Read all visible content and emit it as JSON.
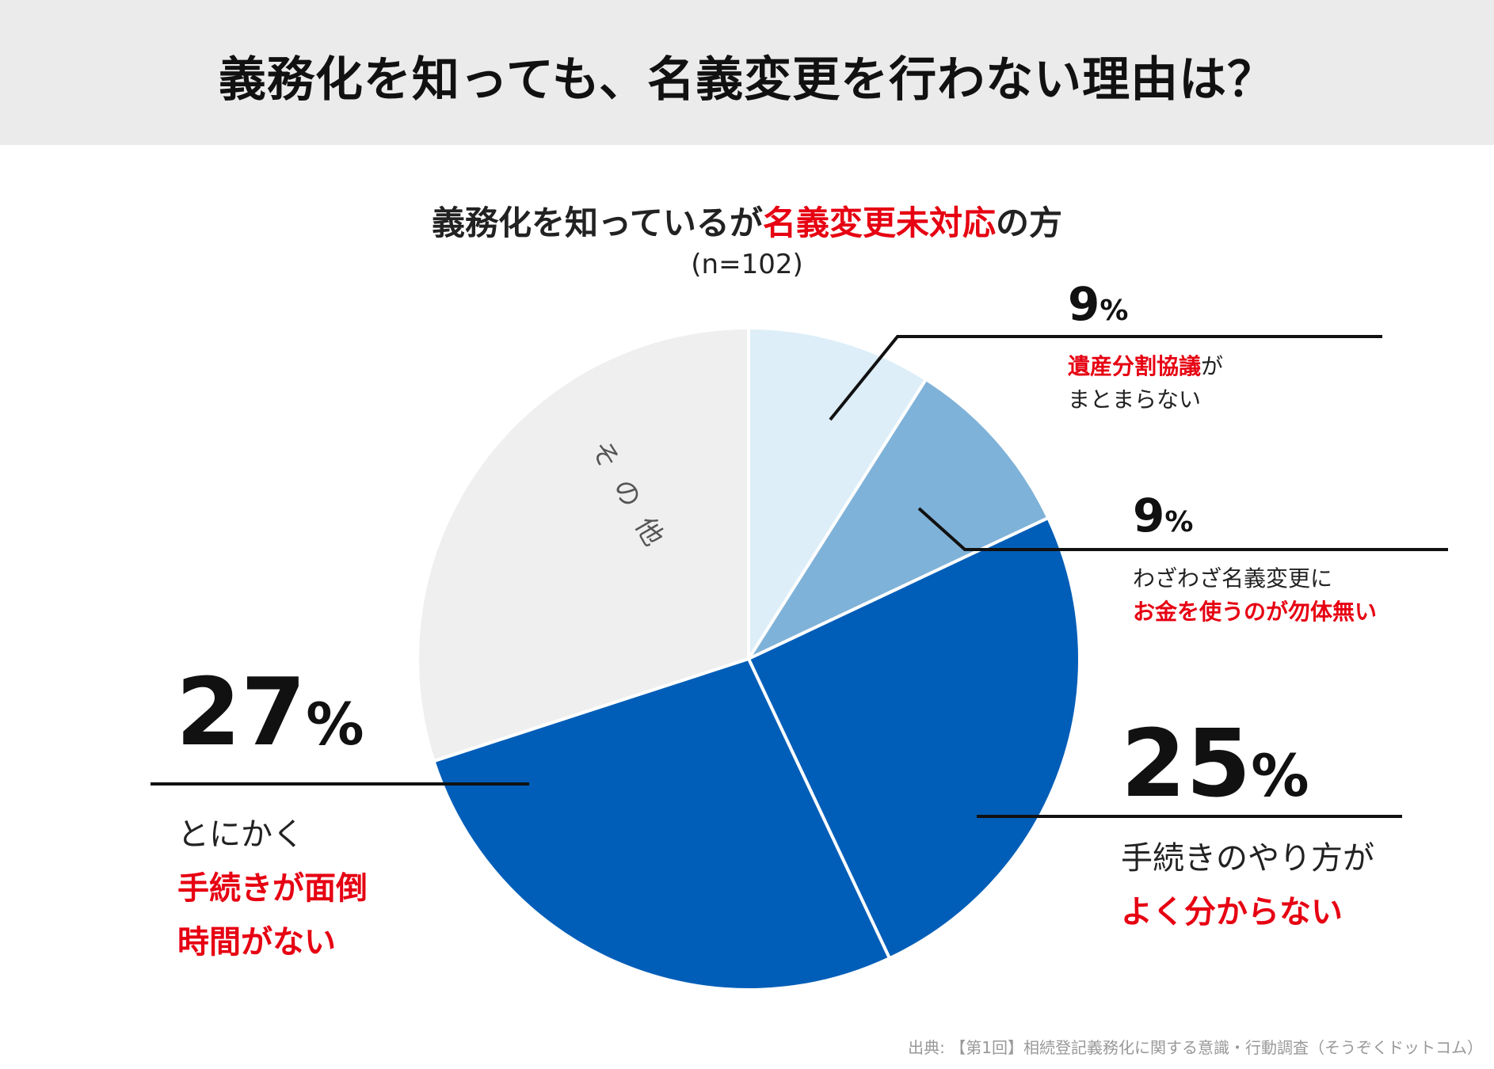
{
  "header": {
    "title": "義務化を知っても、名義変更を行わない理由は？"
  },
  "subtitle": {
    "prefix": "義務化を知っているが",
    "highlight": "名義変更未対応",
    "suffix": "の方",
    "sample": "(n=102)"
  },
  "colors": {
    "slice_inheritance": "#ddeef8",
    "slice_money": "#7fb2d8",
    "slice_procedure": "#005eb8",
    "slice_hassle": "#005eb8",
    "slice_other": "#efefef",
    "highlight_red": "#e60012",
    "leader": "#111111"
  },
  "chart_data": {
    "type": "pie",
    "title": "義務化を知っているが名義変更未対応の方",
    "n": 102,
    "start_angle_deg": 0,
    "direction": "clockwise",
    "slices": [
      {
        "id": "inheritance",
        "value": 9,
        "percent_label": "9",
        "sign": "%",
        "lines": [
          "遺産分割協議が",
          "まとまらない"
        ],
        "highlight": "遺産分割協議"
      },
      {
        "id": "money",
        "value": 9,
        "percent_label": "9",
        "sign": "%",
        "lines": [
          "わざわざ名義変更に",
          "お金を使うのが勿体無い"
        ],
        "highlight": "お金を使うのが勿体無い"
      },
      {
        "id": "procedure",
        "value": 25,
        "percent_label": "25",
        "sign": "%",
        "lines": [
          "手続きのやり方が",
          "よく分からない"
        ],
        "highlight": "よく分からない"
      },
      {
        "id": "hassle",
        "value": 27,
        "percent_label": "27",
        "sign": "%",
        "lines": [
          "とにかく",
          "手続きが面倒",
          "時間がない"
        ],
        "highlight": "手続きが面倒"
      },
      {
        "id": "other",
        "value": 30,
        "percent_label": "",
        "sign": "",
        "lines": [],
        "inner_label": "その他"
      }
    ]
  },
  "labels": {
    "inheritance": {
      "pct": "9",
      "sign": "%",
      "line1_red": "遺産分割協議",
      "line1_rest": "が",
      "line2": "まとまらない"
    },
    "money": {
      "pct": "9",
      "sign": "%",
      "line1": "わざわざ名義変更に",
      "line2_red": "お金を使うのが勿体無い"
    },
    "procedure": {
      "pct": "25",
      "sign": "%",
      "line1": "手続きのやり方が",
      "line2_red": "よく分からない"
    },
    "hassle": {
      "pct": "27",
      "sign": "%",
      "line1": "とにかく",
      "line2_red": "手続きが面倒",
      "line3_red": "時間がない"
    },
    "other": {
      "inner": "その他"
    }
  },
  "source": "出典: 【第1回】相続登記義務化に関する意識・行動調査（そうぞくドットコム）"
}
